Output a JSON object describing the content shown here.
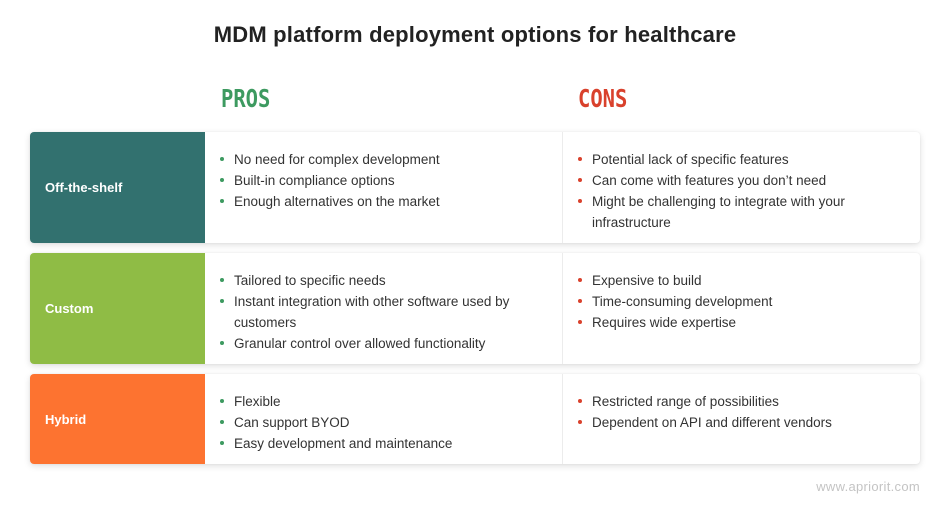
{
  "title": "MDM platform deployment options for healthcare",
  "columns": {
    "pros": "PROS",
    "cons": "CONS"
  },
  "colors": {
    "pros": "#3d9a60",
    "cons": "#d9412c",
    "off_the_shelf": "#32716f",
    "custom": "#8fbc45",
    "hybrid": "#fd7330"
  },
  "rows": [
    {
      "label": "Off-the-shelf",
      "pros": [
        "No need for complex development",
        "Built-in compliance options",
        "Enough alternatives on the market"
      ],
      "cons": [
        "Potential lack of specific features",
        "Can come with features you don’t need",
        "Might be challenging to integrate with your infrastructure"
      ]
    },
    {
      "label": "Custom",
      "pros": [
        "Tailored to specific needs",
        "Instant integration with other software used by customers",
        "Granular control over allowed functionality"
      ],
      "cons": [
        "Expensive to build",
        "Time-consuming development",
        "Requires wide expertise"
      ]
    },
    {
      "label": "Hybrid",
      "pros": [
        "Flexible",
        "Can support BYOD",
        "Easy development and maintenance"
      ],
      "cons": [
        "Restricted range of possibilities",
        "Dependent on API and different vendors"
      ]
    }
  ],
  "watermark": "www.apriorit.com"
}
